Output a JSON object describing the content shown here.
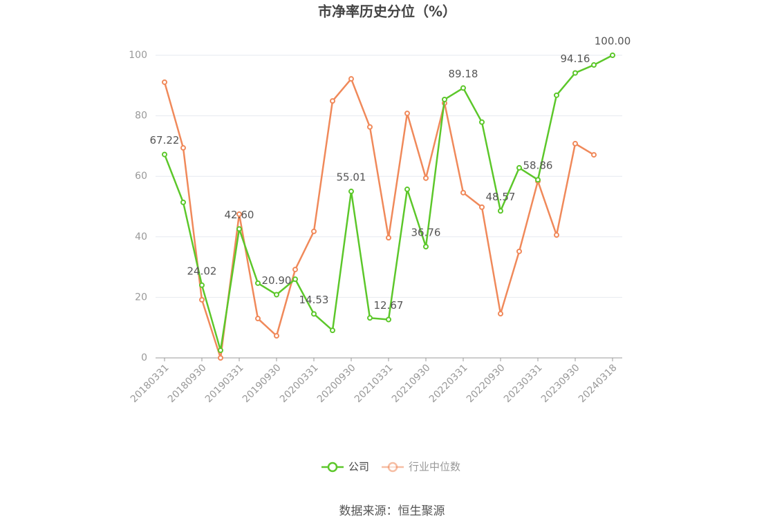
{
  "chart_data": {
    "type": "line",
    "title": "市净率历史分位（%）",
    "categories": [
      "20180331",
      null,
      "20180930",
      null,
      "20190331",
      null,
      "20190930",
      null,
      "20200331",
      null,
      "20200930",
      null,
      "20210331",
      null,
      "20210930",
      null,
      "20220331",
      null,
      "20220930",
      null,
      "20230331",
      null,
      "20230930",
      null,
      "20240318"
    ],
    "series": [
      {
        "name": "公司",
        "color": "#5cc72a",
        "values": [
          67.22,
          51.4,
          24.02,
          2.5,
          42.6,
          24.7,
          20.9,
          26.0,
          14.53,
          9.1,
          55.01,
          13.2,
          12.67,
          55.7,
          36.76,
          85.4,
          89.18,
          77.9,
          48.57,
          62.8,
          58.86,
          86.8,
          94.16,
          96.8,
          100
        ],
        "value_labels": [
          "67.22",
          null,
          "24.02",
          null,
          "42.60",
          null,
          "20.90",
          null,
          "14.53",
          null,
          "55.01",
          null,
          "12.67",
          null,
          "36.76",
          null,
          "89.18",
          null,
          "48.57",
          null,
          "58.86",
          null,
          "94.16",
          null,
          "100.00"
        ]
      },
      {
        "name": "行业中位数",
        "color": "#f0895a",
        "values": [
          91.1,
          69.4,
          19.2,
          0,
          47.5,
          13.0,
          7.3,
          29.2,
          41.8,
          84.9,
          92.2,
          76.3,
          39.7,
          80.8,
          59.4,
          84.2,
          54.6,
          49.8,
          14.6,
          35.2,
          58.4,
          40.6,
          70.8,
          67.1,
          null
        ]
      }
    ],
    "ylim": [
      0,
      100
    ],
    "yticks": [
      0,
      20,
      40,
      60,
      80,
      100
    ],
    "grid": true,
    "legend": "bottom",
    "source": "数据来源：恒生聚源"
  }
}
